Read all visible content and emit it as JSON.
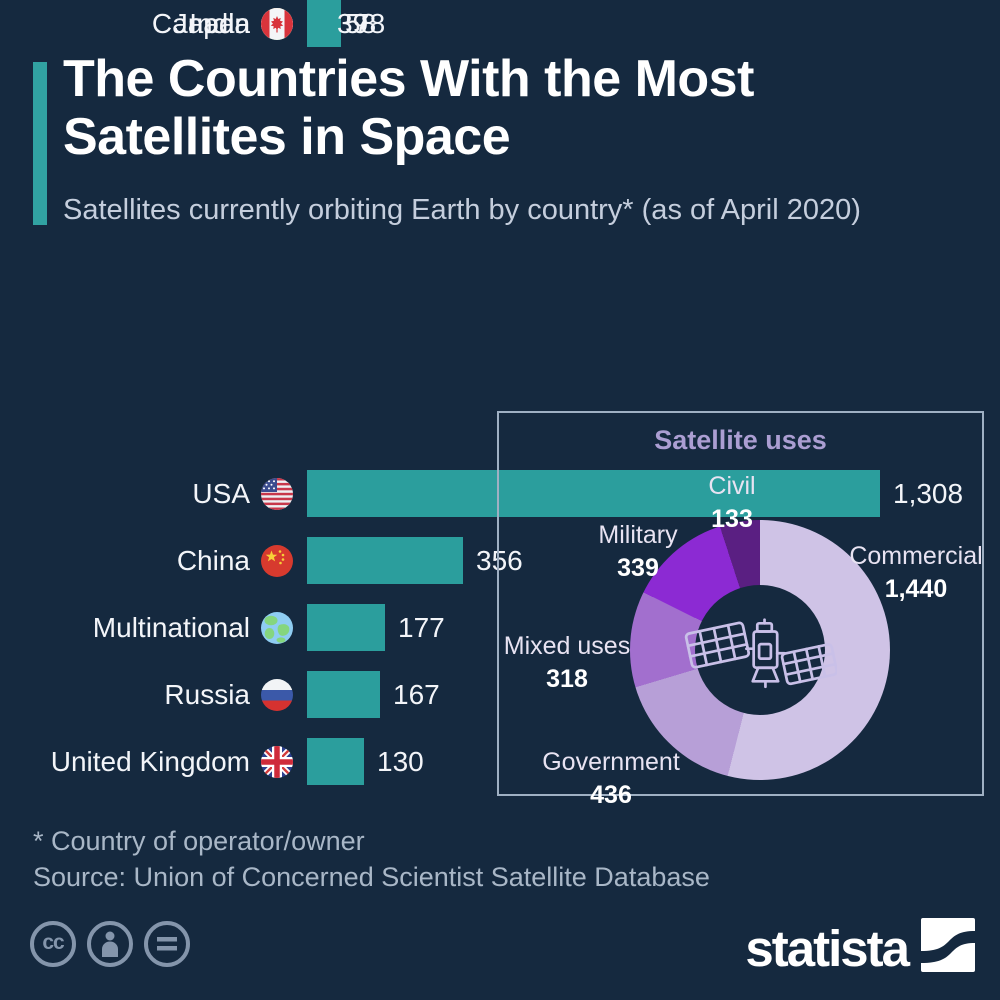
{
  "header": {
    "title_line1": "The Countries With the Most",
    "title_line2": "Satellites in Space",
    "subtitle": "Satellites currently orbiting Earth by country* (as of April 2020)"
  },
  "chart_data": [
    {
      "type": "bar",
      "orientation": "horizontal",
      "categories": [
        "USA",
        "China",
        "Multinational",
        "Russia",
        "United Kingdom",
        "Japan",
        "India",
        "Canada"
      ],
      "values": [
        1308,
        356,
        177,
        167,
        130,
        78,
        58,
        39
      ],
      "value_labels": [
        "1,308",
        "356",
        "177",
        "167",
        "130",
        "78",
        "58",
        "39"
      ],
      "flag_icons": [
        "usa-flag-icon",
        "china-flag-icon",
        "globe-icon",
        "russia-flag-icon",
        "uk-flag-icon",
        "japan-flag-icon",
        "india-flag-icon",
        "canada-flag-icon"
      ],
      "bar_color": "#2b9e9d",
      "xlim": [
        0,
        1308
      ],
      "grid": false
    },
    {
      "type": "pie",
      "subtype": "donut",
      "title": "Satellite uses",
      "labels": [
        "Commercial",
        "Government",
        "Mixed uses",
        "Military",
        "Civil"
      ],
      "values": [
        1440,
        436,
        318,
        339,
        133
      ],
      "value_labels": [
        "1,440",
        "436",
        "318",
        "339",
        "133"
      ],
      "colors": [
        "#cfc3e6",
        "#b79fd7",
        "#a26fce",
        "#8c2ad3",
        "#5a1f82"
      ],
      "start_angle": "12 o'clock",
      "direction": "clockwise",
      "center_icon": "satellite-icon"
    }
  ],
  "footnote": "* Country of operator/owner",
  "source": "Source: Union of Concerned Scientist Satellite Database",
  "branding": {
    "logo_text": "statista"
  },
  "license": {
    "icons": [
      "creative-commons-icon",
      "attribution-icon",
      "no-derivatives-icon"
    ]
  },
  "colors": {
    "background": "#15293f",
    "accent_teal": "#2b9e9d",
    "panel_border": "#9fb0c3"
  }
}
